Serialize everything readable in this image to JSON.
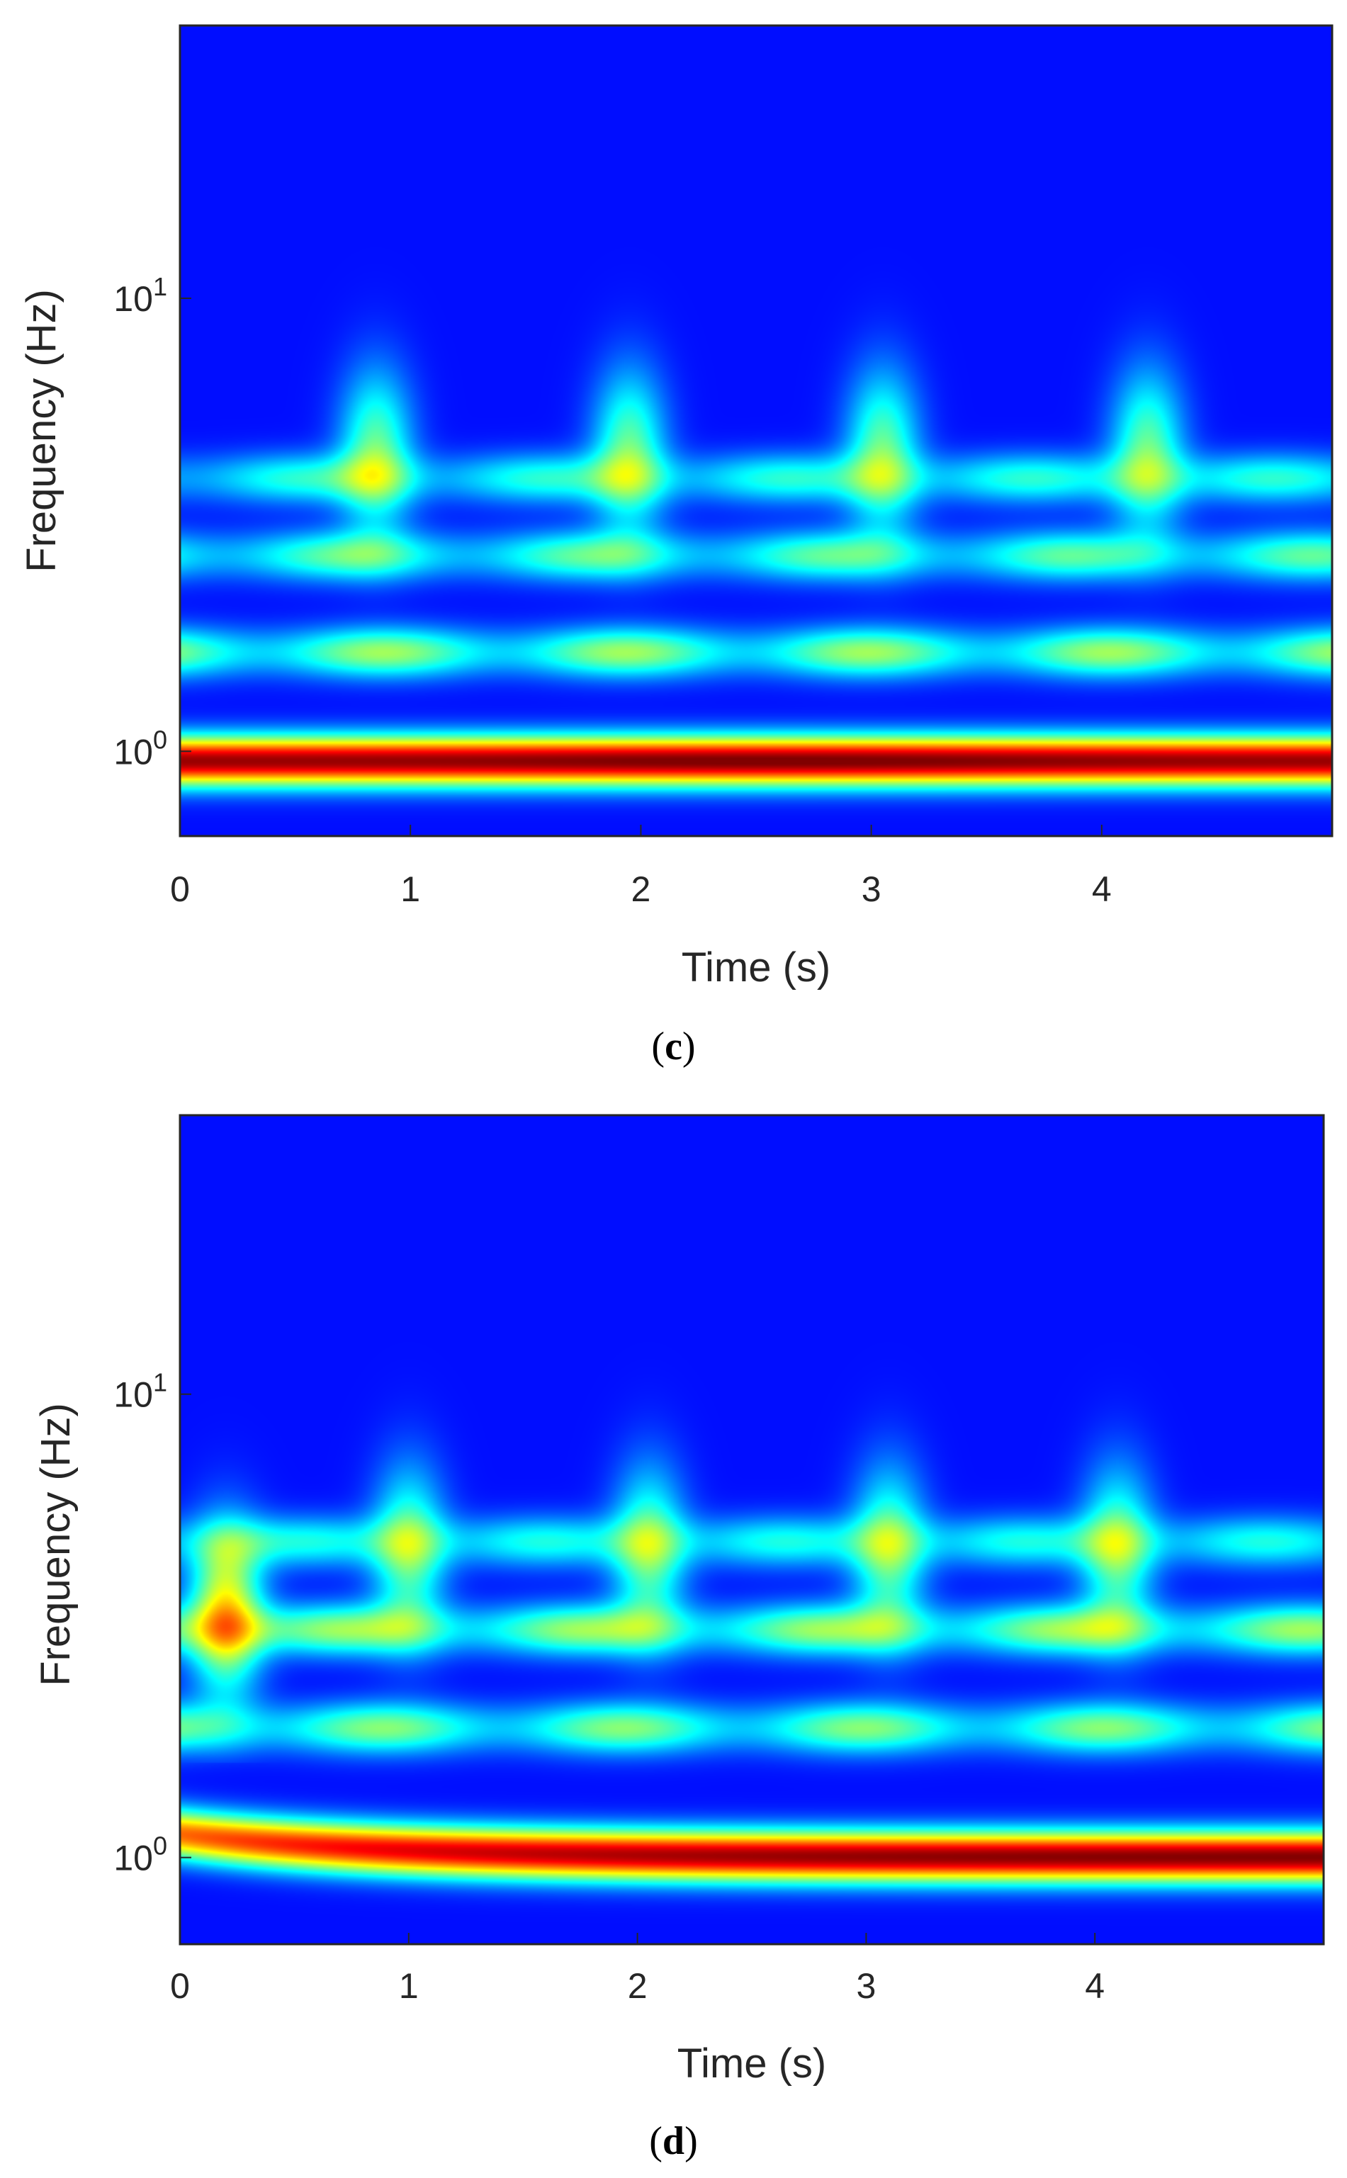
{
  "chart_data": [
    {
      "type": "heatmap",
      "panel_label": "c",
      "xlabel": "Time (s)",
      "ylabel": "Frequency (Hz)",
      "xlim": [
        0,
        5
      ],
      "ylim": [
        0.65,
        40
      ],
      "y_scale": "log",
      "x_ticks": [
        "0",
        "1",
        "2",
        "3",
        "4"
      ],
      "y_ticks": [
        {
          "base": "10",
          "exp": "1"
        },
        {
          "base": "10",
          "exp": "0"
        }
      ],
      "colormap": "jet",
      "ridges": [
        {
          "freq": 0.95,
          "peak": 0.98
        },
        {
          "freq": 1.65,
          "peak": 0.45
        },
        {
          "freq": 2.7,
          "peak": 0.38
        },
        {
          "freq": 4.0,
          "peak": 0.32
        }
      ],
      "bursts": [
        0.85,
        1.95,
        3.05,
        4.2
      ]
    },
    {
      "type": "heatmap",
      "panel_label": "d",
      "xlabel": "Time (s)",
      "ylabel": "Frequency (Hz)",
      "xlim": [
        0,
        5
      ],
      "ylim": [
        0.65,
        40
      ],
      "y_scale": "log",
      "x_ticks": [
        "0",
        "1",
        "2",
        "3",
        "4"
      ],
      "y_ticks": [
        {
          "base": "10",
          "exp": "1"
        },
        {
          "base": "10",
          "exp": "0"
        }
      ],
      "colormap": "jet",
      "ridges": [
        {
          "freq": 1.0,
          "peak": 0.95
        },
        {
          "freq": 1.9,
          "peak": 0.42
        },
        {
          "freq": 3.1,
          "peak": 0.45
        },
        {
          "freq": 4.8,
          "peak": 0.3
        }
      ],
      "bursts": [
        0.2,
        1.0,
        2.05,
        3.1,
        4.1
      ]
    }
  ],
  "colors": {
    "background_low": "#00007f",
    "frame": "#262626"
  }
}
